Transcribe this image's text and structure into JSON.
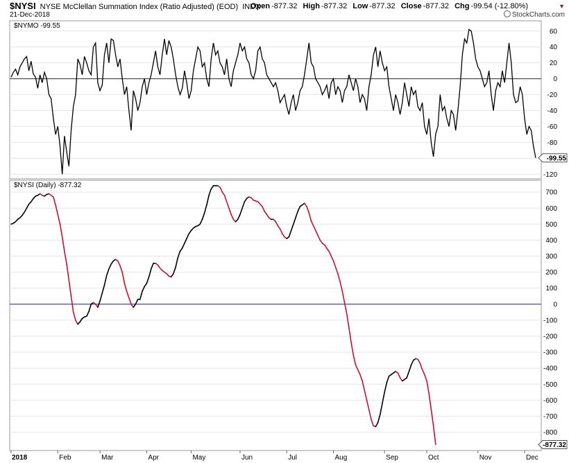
{
  "header": {
    "symbol": "$NYSI",
    "title": "NYSE McClellan Summation Index (Ratio Adjusted) (EOD)",
    "exchange": "INDX",
    "date": "21-Dec-2018",
    "brand": "StockCharts.com",
    "ohlc": [
      {
        "label": "Open",
        "value": "-877.32"
      },
      {
        "label": "High",
        "value": "-877.32"
      },
      {
        "label": "Low",
        "value": "-877.32"
      },
      {
        "label": "Close",
        "value": "-877.32"
      },
      {
        "label": "Chg",
        "value": "-99.54 (-12.80%)"
      }
    ]
  },
  "colors": {
    "line": "#000000",
    "down": "#c8102e",
    "zero_line": "#1a237e",
    "grid": "#e6e6e6",
    "frame": "#9a9a9a"
  },
  "chart_data": [
    {
      "type": "line",
      "legend": "$NYMO -99.55",
      "last_value_label": "-99.55",
      "ylim": [
        -125,
        72
      ],
      "yticks": [
        60,
        40,
        20,
        0,
        -20,
        -40,
        -60,
        -80,
        -100,
        -120
      ],
      "ytick_labels": [
        "60",
        "40",
        "20",
        "0",
        "-20",
        "-40",
        "-60",
        "-80",
        "-100",
        "-120"
      ],
      "grid": true,
      "reference_line": 0,
      "series": [
        {
          "x_index_start": 0,
          "values": [
            2,
            8,
            12,
            5,
            15,
            20,
            25,
            28,
            10,
            22,
            6,
            2,
            -12,
            5,
            -5,
            8,
            0,
            -20,
            -25,
            -50,
            -70,
            -60,
            -85,
            -120,
            -72,
            -92,
            -110,
            -65,
            -35,
            -20,
            25,
            18,
            5,
            28,
            20,
            10,
            5,
            40,
            45,
            -5,
            -15,
            -8,
            30,
            45,
            20,
            50,
            48,
            30,
            15,
            25,
            0,
            -20,
            -10,
            -40,
            -65,
            -15,
            -25,
            -40,
            -30,
            -10,
            0,
            -20,
            -5,
            5,
            20,
            35,
            15,
            5,
            30,
            50,
            30,
            48,
            40,
            25,
            5,
            -10,
            -20,
            -12,
            10,
            -5,
            -25,
            -15,
            10,
            25,
            40,
            35,
            15,
            20,
            0,
            -10,
            25,
            45,
            30,
            35,
            20,
            15,
            5,
            25,
            0,
            -10,
            10,
            20,
            30,
            45,
            35,
            40,
            25,
            20,
            5,
            0,
            10,
            35,
            40,
            25,
            20,
            5,
            0,
            -5,
            -10,
            -5,
            -15,
            -30,
            -25,
            -20,
            -35,
            -45,
            -30,
            -20,
            -40,
            -30,
            -15,
            -10,
            5,
            25,
            45,
            20,
            15,
            0,
            -5,
            -10,
            -20,
            -15,
            -8,
            -25,
            -5,
            0,
            -20,
            -10,
            -15,
            -30,
            -15,
            -10,
            5,
            -5,
            -15,
            0,
            -10,
            -30,
            -20,
            -25,
            -40,
            -10,
            5,
            30,
            40,
            15,
            35,
            20,
            10,
            15,
            -10,
            -25,
            -40,
            -20,
            -30,
            -45,
            -30,
            -5,
            -20,
            -35,
            -10,
            -20,
            -15,
            -35,
            -40,
            -30,
            -60,
            -70,
            -50,
            -80,
            -98,
            -70,
            -60,
            -20,
            -40,
            -35,
            -50,
            -60,
            -40,
            -45,
            -65,
            -40,
            -10,
            30,
            50,
            45,
            62,
            60,
            45,
            25,
            15,
            10,
            0,
            -10,
            -5,
            10,
            -20,
            -40,
            -15,
            -5,
            -10,
            10,
            -5,
            20,
            45,
            20,
            -20,
            -30,
            -28,
            -10,
            -20,
            -50,
            -70,
            -60,
            -65,
            -85,
            -99.55
          ]
        }
      ]
    },
    {
      "type": "line",
      "legend": "$NYSI (Daily) -877.32",
      "last_value_label": "-877.32",
      "ylim": [
        -910,
        770
      ],
      "yticks": [
        700,
        600,
        500,
        400,
        300,
        200,
        100,
        0,
        -100,
        -200,
        -300,
        -400,
        -500,
        -600,
        -700,
        -800
      ],
      "ytick_labels": [
        "700",
        "600",
        "500",
        "400",
        "300",
        "200",
        "100",
        "0",
        "-100",
        "-200",
        "-300",
        "-400",
        "-500",
        "-600",
        "-700",
        "-800"
      ],
      "grid": true,
      "reference_line": 0,
      "x_labels": [
        {
          "label": "2018",
          "index": 0
        },
        {
          "label": "Feb",
          "index": 21
        },
        {
          "label": "Mar",
          "index": 40
        },
        {
          "label": "Apr",
          "index": 61
        },
        {
          "label": "May",
          "index": 81
        },
        {
          "label": "Jun",
          "index": 103
        },
        {
          "label": "Jul",
          "index": 124
        },
        {
          "label": "Aug",
          "index": 145
        },
        {
          "label": "Sep",
          "index": 168
        },
        {
          "label": "Oct",
          "index": 187
        },
        {
          "label": "Nov",
          "index": 210
        },
        {
          "label": "Dec",
          "index": 231
        }
      ],
      "series": [
        {
          "x_index_start": 0,
          "values": [
            500,
            505,
            515,
            530,
            540,
            555,
            575,
            600,
            625,
            640,
            660,
            675,
            680,
            690,
            680,
            675,
            685,
            690,
            680,
            670,
            620,
            560,
            500,
            420,
            330,
            250,
            150,
            50,
            -50,
            -100,
            -125,
            -110,
            -90,
            -80,
            -75,
            -45,
            0,
            10,
            0,
            -20,
            20,
            70,
            120,
            180,
            220,
            250,
            270,
            280,
            270,
            240,
            200,
            130,
            80,
            40,
            0,
            -20,
            0,
            30,
            30,
            80,
            110,
            130,
            170,
            220,
            255,
            255,
            245,
            225,
            210,
            200,
            190,
            175,
            170,
            190,
            230,
            290,
            330,
            350,
            380,
            410,
            440,
            460,
            475,
            485,
            490,
            500,
            530,
            570,
            620,
            680,
            720,
            740,
            740,
            740,
            730,
            700,
            680,
            640,
            600,
            560,
            530,
            515,
            530,
            560,
            600,
            640,
            660,
            670,
            665,
            650,
            645,
            640,
            625,
            610,
            580,
            560,
            540,
            530,
            530,
            515,
            490,
            470,
            440,
            420,
            410,
            420,
            460,
            500,
            540,
            580,
            610,
            620,
            630,
            610,
            570,
            520,
            490,
            460,
            430,
            400,
            380,
            370,
            350,
            330,
            300,
            270,
            230,
            190,
            140,
            80,
            10,
            -60,
            -150,
            -240,
            -320,
            -380,
            -410,
            -440,
            -480,
            -540,
            -600,
            -660,
            -720,
            -760,
            -765,
            -740,
            -690,
            -620,
            -550,
            -490,
            -450,
            -440,
            -430,
            -420,
            -430,
            -460,
            -480,
            -470,
            -460,
            -420,
            -380,
            -350,
            -340,
            -345,
            -370,
            -410,
            -440,
            -480,
            -560,
            -660,
            -760,
            -877.32
          ]
        }
      ]
    }
  ]
}
